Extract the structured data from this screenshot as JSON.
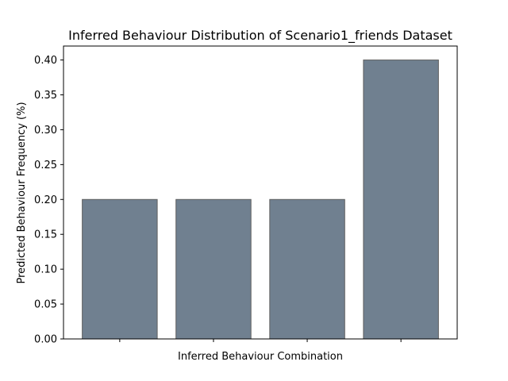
{
  "chart_data": {
    "type": "bar",
    "title": "Inferred Behaviour Distribution of Scenario1_friends Dataset",
    "xlabel": "Inferred Behaviour Combination",
    "ylabel": "Predicted Behaviour Frequency (%)",
    "categories": [
      "",
      "",
      "",
      ""
    ],
    "values": [
      0.2,
      0.2,
      0.2,
      0.4
    ],
    "ylim": [
      0,
      0.42
    ],
    "yticks": [
      "0.00",
      "0.05",
      "0.10",
      "0.15",
      "0.20",
      "0.25",
      "0.30",
      "0.35",
      "0.40"
    ],
    "bar_color": "#708090",
    "bar_edge_color": "#5f5f5f",
    "grid": false,
    "legend": "none"
  }
}
